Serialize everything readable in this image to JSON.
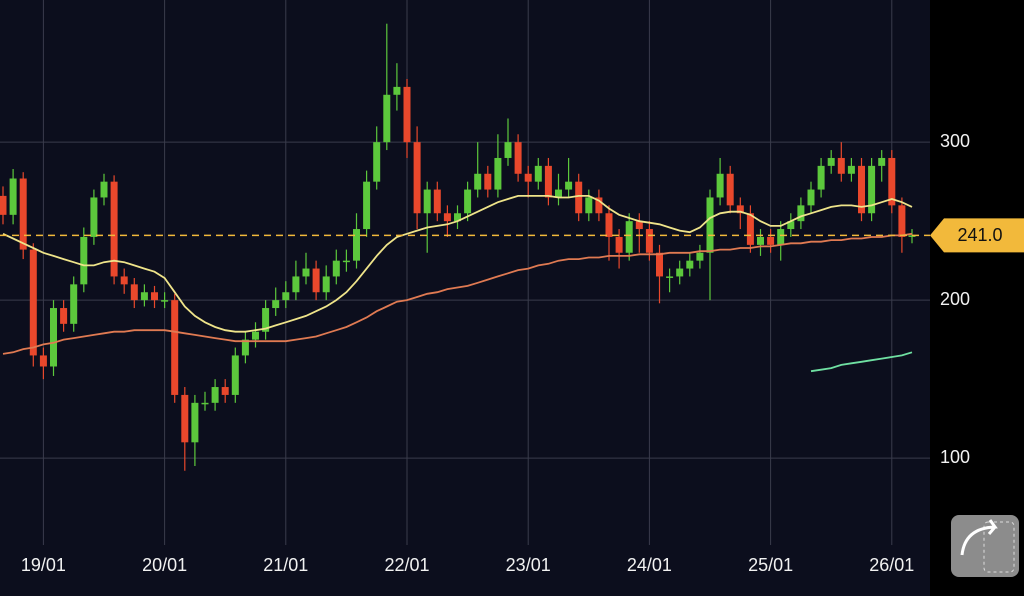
{
  "chart_data": {
    "type": "candlestick",
    "categories": [
      null,
      null,
      null,
      null,
      "19/01",
      null,
      null,
      null,
      null,
      null,
      null,
      null,
      null,
      null,
      null,
      null,
      "20/01",
      null,
      null,
      null,
      null,
      null,
      null,
      null,
      null,
      null,
      null,
      null,
      "21/01",
      null,
      null,
      null,
      null,
      null,
      null,
      null,
      null,
      null,
      null,
      null,
      "22/01",
      null,
      null,
      null,
      null,
      null,
      null,
      null,
      null,
      null,
      null,
      null,
      "23/01",
      null,
      null,
      null,
      null,
      null,
      null,
      null,
      null,
      null,
      null,
      null,
      "24/01",
      null,
      null,
      null,
      null,
      null,
      null,
      null,
      null,
      null,
      null,
      null,
      "25/01",
      null,
      null,
      null,
      null,
      null,
      null,
      null,
      null,
      null,
      null,
      null,
      "26/01",
      null,
      null
    ],
    "open": [
      266,
      254,
      277,
      232,
      165,
      158,
      195,
      185,
      210,
      240,
      265,
      275,
      215,
      210,
      200,
      205,
      200,
      200,
      140,
      110,
      135,
      135,
      145,
      140,
      165,
      175,
      180,
      195,
      200,
      205,
      215,
      220,
      205,
      215,
      225,
      225,
      245,
      275,
      300,
      330,
      335,
      300,
      255,
      270,
      255,
      250,
      255,
      270,
      280,
      270,
      290,
      300,
      280,
      275,
      285,
      265,
      270,
      275,
      255,
      265,
      255,
      240,
      230,
      250,
      245,
      230,
      215,
      215,
      220,
      225,
      230,
      265,
      280,
      260,
      255,
      235,
      240,
      235,
      245,
      250,
      260,
      270,
      285,
      290,
      280,
      285,
      255,
      285,
      290,
      260,
      240
    ],
    "high": [
      272,
      283,
      281,
      236,
      170,
      200,
      200,
      215,
      246,
      270,
      280,
      279,
      220,
      214,
      210,
      209,
      205,
      204,
      145,
      140,
      142,
      150,
      150,
      170,
      180,
      186,
      200,
      208,
      212,
      225,
      230,
      225,
      222,
      232,
      232,
      255,
      282,
      310,
      375,
      350,
      340,
      310,
      275,
      275,
      260,
      260,
      275,
      300,
      285,
      305,
      315,
      305,
      285,
      290,
      290,
      280,
      290,
      280,
      270,
      270,
      260,
      245,
      255,
      255,
      250,
      235,
      220,
      225,
      230,
      235,
      270,
      290,
      285,
      265,
      260,
      245,
      245,
      250,
      255,
      265,
      275,
      290,
      295,
      300,
      290,
      290,
      290,
      295,
      295,
      265,
      245
    ],
    "low": [
      248,
      248,
      226,
      158,
      150,
      152,
      180,
      180,
      205,
      235,
      260,
      210,
      204,
      195,
      196,
      195,
      195,
      135,
      92,
      95,
      130,
      130,
      135,
      135,
      160,
      170,
      175,
      190,
      195,
      200,
      210,
      200,
      200,
      210,
      218,
      220,
      240,
      270,
      295,
      320,
      290,
      245,
      230,
      250,
      240,
      245,
      250,
      265,
      265,
      265,
      285,
      275,
      265,
      270,
      260,
      260,
      265,
      250,
      250,
      250,
      225,
      220,
      225,
      230,
      225,
      198,
      205,
      210,
      215,
      220,
      200,
      260,
      255,
      245,
      230,
      228,
      230,
      225,
      240,
      245,
      255,
      265,
      280,
      275,
      275,
      250,
      250,
      275,
      255,
      230,
      236
    ],
    "close": [
      254,
      277,
      232,
      165,
      158,
      195,
      185,
      210,
      240,
      265,
      275,
      215,
      210,
      200,
      205,
      200,
      200,
      140,
      110,
      135,
      135,
      145,
      140,
      165,
      175,
      180,
      195,
      200,
      205,
      215,
      220,
      205,
      215,
      225,
      225,
      245,
      275,
      300,
      330,
      335,
      300,
      255,
      270,
      255,
      250,
      255,
      270,
      280,
      270,
      290,
      300,
      280,
      275,
      285,
      265,
      270,
      275,
      255,
      265,
      255,
      240,
      230,
      250,
      245,
      230,
      215,
      215,
      220,
      225,
      230,
      265,
      280,
      260,
      255,
      235,
      240,
      235,
      245,
      250,
      260,
      270,
      285,
      290,
      280,
      285,
      255,
      285,
      290,
      260,
      240,
      241
    ],
    "up_color": "#5cc83c",
    "down_color": "#e9482c",
    "series": [
      {
        "color": "#efe48a",
        "values": [
          242,
          239,
          236,
          233,
          230,
          228,
          226,
          224,
          222,
          222,
          224,
          225,
          224,
          222,
          220,
          218,
          214,
          205,
          196,
          190,
          186,
          183,
          181,
          180,
          180,
          181,
          182,
          184,
          186,
          188,
          190,
          193,
          196,
          200,
          205,
          212,
          220,
          228,
          235,
          240,
          242,
          244,
          246,
          247,
          248,
          250,
          253,
          256,
          259,
          262,
          264,
          266,
          266,
          266,
          266,
          265,
          265,
          266,
          266,
          263,
          258,
          254,
          252,
          250,
          249,
          248,
          246,
          244,
          243,
          246,
          252,
          255,
          256,
          256,
          254,
          250,
          247,
          247,
          250,
          253,
          255,
          257,
          259,
          260,
          260,
          259,
          260,
          262,
          264,
          262,
          259
        ]
      },
      {
        "color": "#e07a52",
        "values": [
          166,
          167,
          169,
          170,
          172,
          173,
          175,
          176,
          177,
          178,
          179,
          180,
          180,
          181,
          181,
          181,
          181,
          180,
          179,
          178,
          177,
          176,
          175,
          174,
          174,
          174,
          174,
          174,
          174,
          175,
          176,
          177,
          179,
          181,
          183,
          186,
          189,
          193,
          196,
          199,
          200,
          202,
          204,
          205,
          207,
          208,
          209,
          211,
          213,
          215,
          217,
          219,
          220,
          222,
          223,
          225,
          226,
          226,
          227,
          227,
          228,
          228,
          228,
          229,
          229,
          229,
          230,
          230,
          230,
          231,
          231,
          232,
          232,
          233,
          233,
          234,
          234,
          235,
          236,
          236,
          237,
          237,
          238,
          238,
          239,
          239,
          240,
          240,
          241,
          241,
          242
        ]
      },
      {
        "color": "#6fe0a2",
        "values": [
          null,
          null,
          null,
          null,
          null,
          null,
          null,
          null,
          null,
          null,
          null,
          null,
          null,
          null,
          null,
          null,
          null,
          null,
          null,
          null,
          null,
          null,
          null,
          null,
          null,
          null,
          null,
          null,
          null,
          null,
          null,
          null,
          null,
          null,
          null,
          null,
          null,
          null,
          null,
          null,
          null,
          null,
          null,
          null,
          null,
          null,
          null,
          null,
          null,
          null,
          null,
          null,
          null,
          null,
          null,
          null,
          null,
          null,
          null,
          null,
          null,
          null,
          null,
          null,
          null,
          null,
          null,
          null,
          null,
          null,
          null,
          null,
          null,
          null,
          null,
          null,
          null,
          null,
          null,
          null,
          155,
          156,
          157,
          159,
          160,
          161,
          162,
          163,
          164,
          165,
          167
        ]
      }
    ],
    "last_price": {
      "value": 241,
      "label": "241.0",
      "color": "#f2b93b"
    },
    "ylim": [
      45,
      390
    ],
    "yticks": [
      100,
      200,
      300
    ],
    "grid": true
  }
}
